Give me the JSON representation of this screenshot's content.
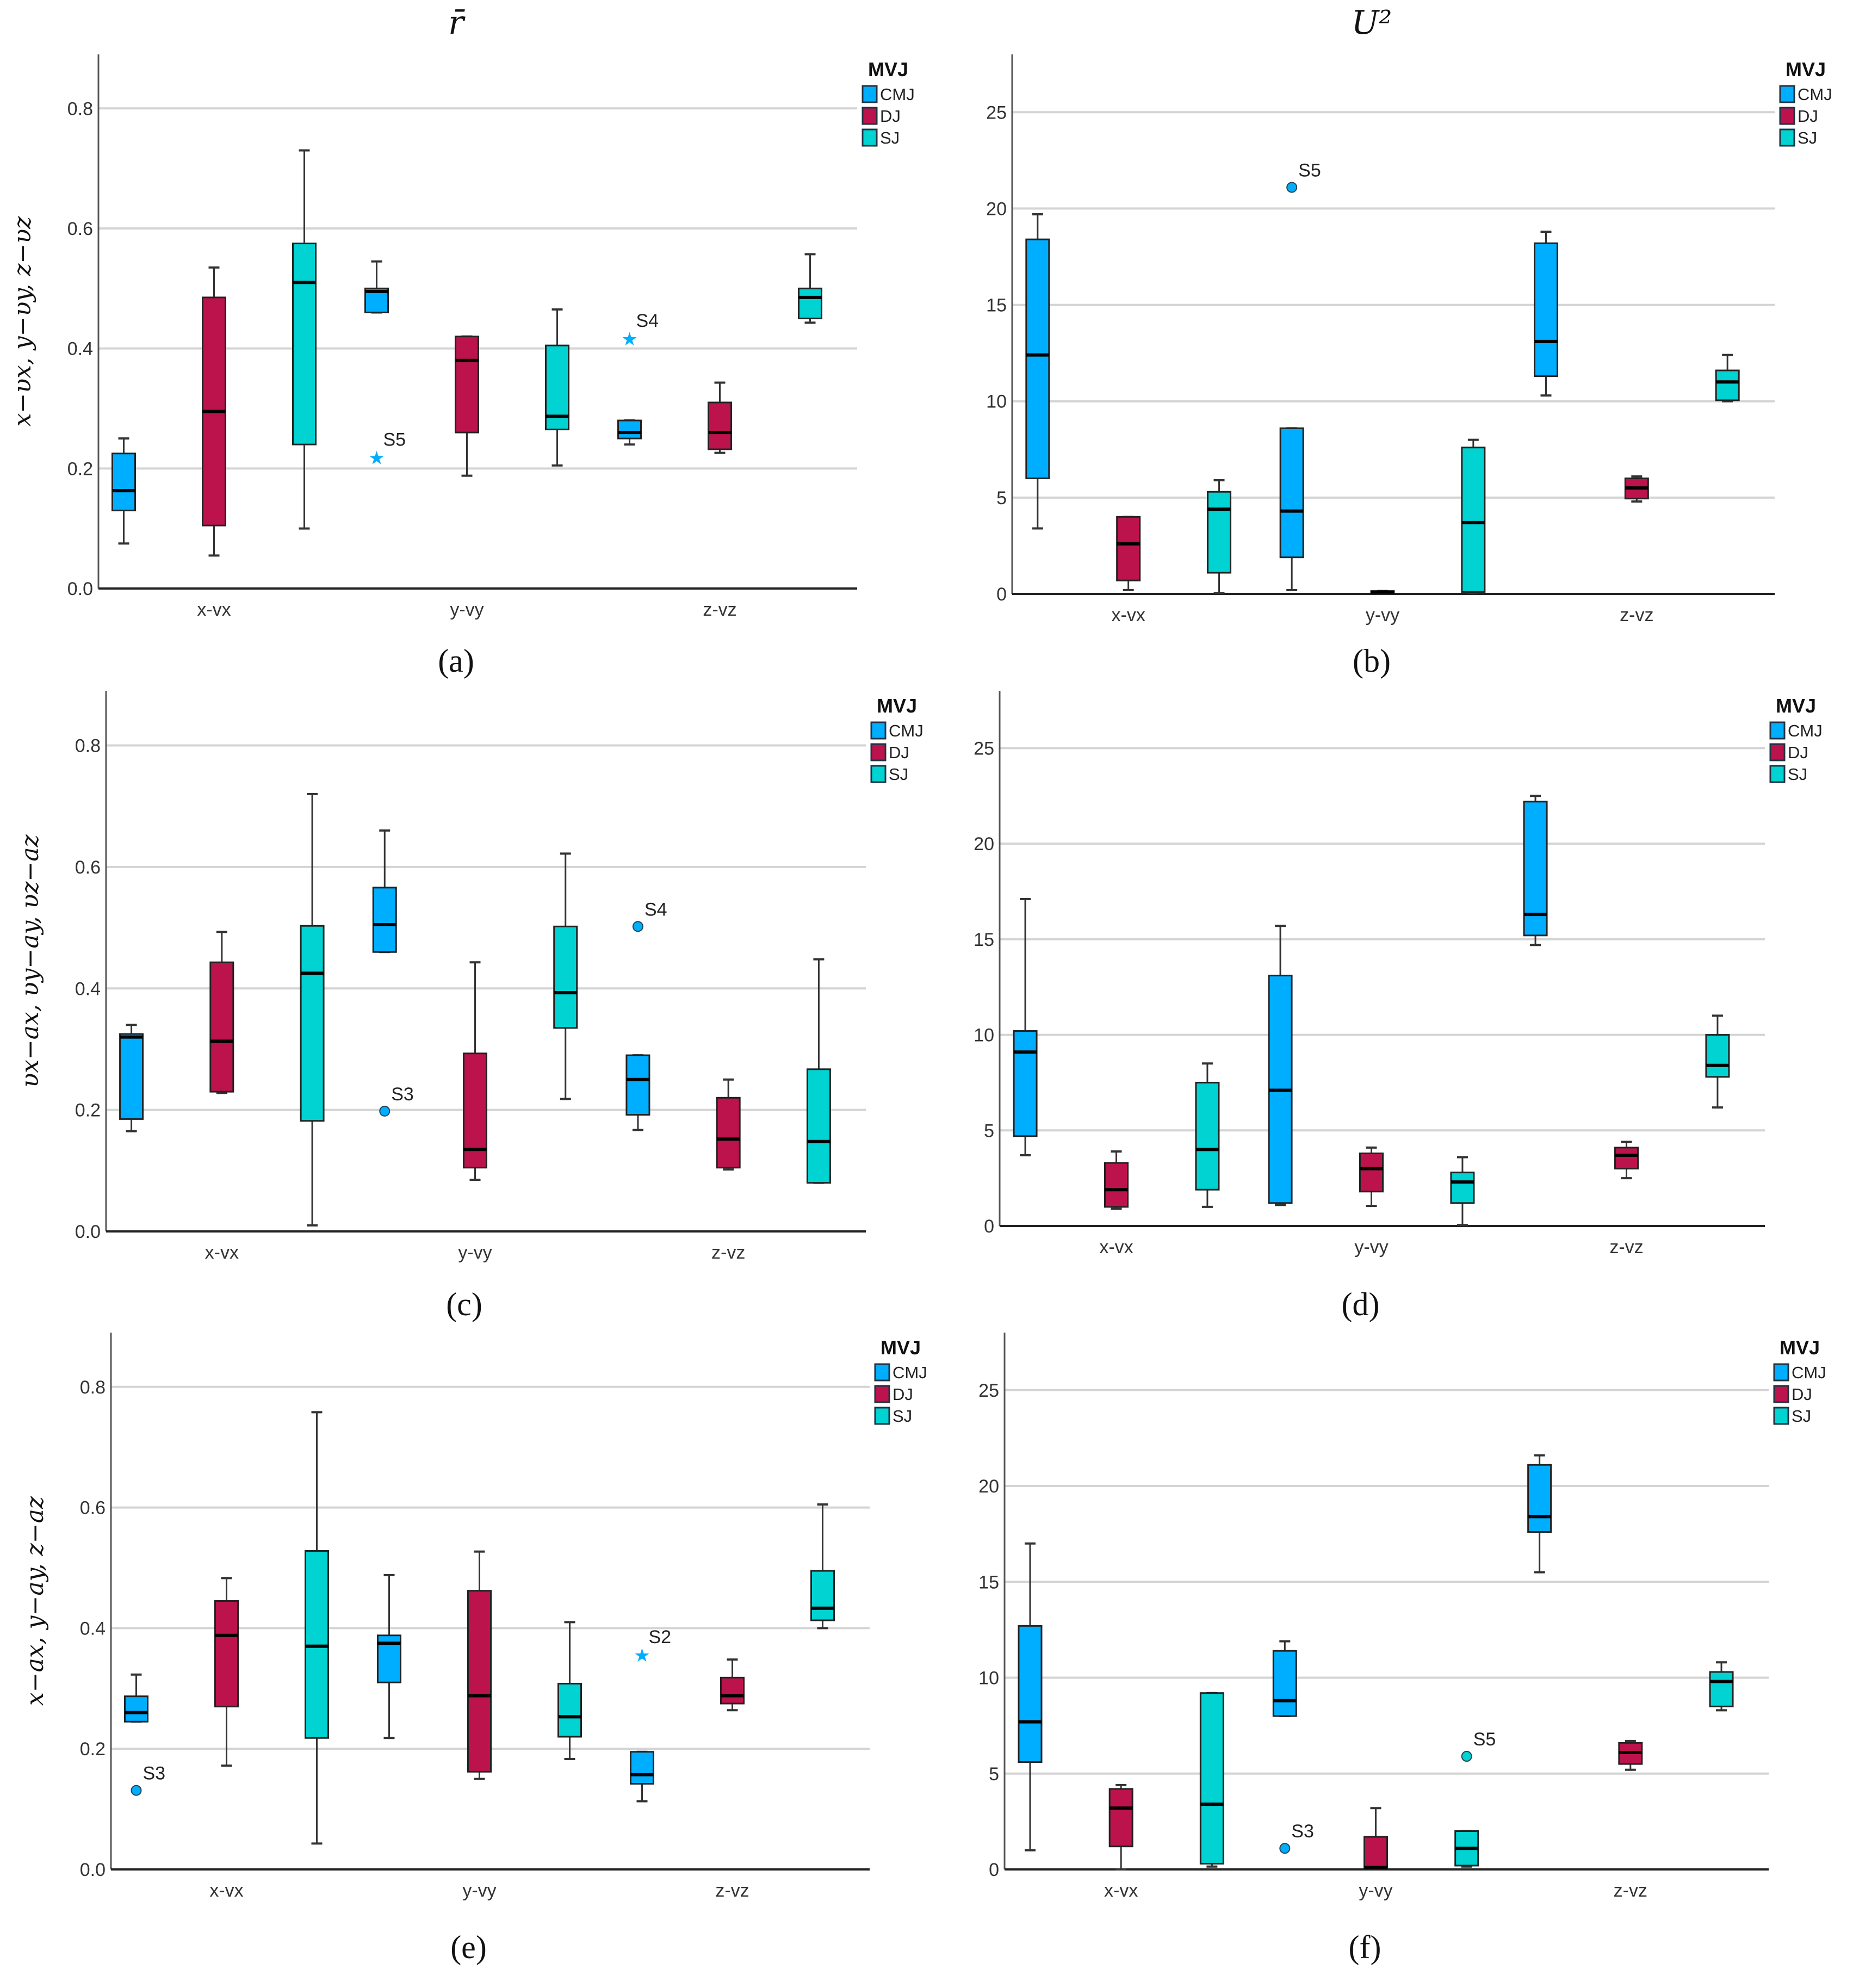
{
  "legend": {
    "title": "MVJ",
    "series": [
      "CMJ",
      "DJ",
      "SJ"
    ]
  },
  "colors": {
    "CMJ": "#00AEFF",
    "DJ": "#BC134C",
    "SJ": "#00D3D1",
    "grid": "#D4D4D4",
    "axis": "#222222"
  },
  "chart_data": [
    {
      "type": "box",
      "panel_label": "(a)",
      "title": "r̄",
      "ylabel": "x−υx, y−υy, z−υz",
      "categories": [
        "x-vx",
        "y-vy",
        "z-vz"
      ],
      "ylim": [
        0,
        0.89
      ],
      "yticks": [
        0,
        0.2,
        0.4,
        0.6,
        0.8
      ],
      "ytick_labels": [
        "0.0",
        "0.2",
        "0.4",
        "0.6",
        "0.8"
      ],
      "series": [
        {
          "name": "CMJ",
          "boxes": [
            [
              0.075,
              0.13,
              0.163,
              0.225,
              0.25
            ],
            [
              0.46,
              0.46,
              0.495,
              0.5,
              0.545
            ],
            [
              0.24,
              0.25,
              0.26,
              0.28,
              0.28
            ]
          ]
        },
        {
          "name": "DJ",
          "boxes": [
            [
              0.055,
              0.105,
              0.295,
              0.485,
              0.535
            ],
            [
              0.188,
              0.26,
              0.38,
              0.42,
              0.42
            ],
            [
              0.226,
              0.232,
              0.26,
              0.31,
              0.343
            ]
          ]
        },
        {
          "name": "SJ",
          "boxes": [
            [
              0.1,
              0.24,
              0.51,
              0.575,
              0.73
            ],
            [
              0.205,
              0.265,
              0.287,
              0.405,
              0.465
            ],
            [
              0.443,
              0.45,
              0.485,
              0.5,
              0.557
            ]
          ]
        }
      ],
      "outliers": [
        {
          "series": "CMJ",
          "category": "y-vy",
          "value": 0.22,
          "label": "S5",
          "marker": "star"
        },
        {
          "series": "CMJ",
          "category": "z-vz",
          "value": 0.418,
          "label": "S4",
          "marker": "star"
        }
      ]
    },
    {
      "type": "box",
      "panel_label": "(b)",
      "title": "U²",
      "ylabel": "",
      "categories": [
        "x-vx",
        "y-vy",
        "z-vz"
      ],
      "ylim": [
        0,
        28
      ],
      "yticks": [
        0,
        5,
        10,
        15,
        20,
        25
      ],
      "ytick_labels": [
        "0",
        "5",
        "10",
        "15",
        "20",
        "25"
      ],
      "series": [
        {
          "name": "CMJ",
          "boxes": [
            [
              3.4,
              6.0,
              12.4,
              18.4,
              19.7
            ],
            [
              0.2,
              1.9,
              4.3,
              8.6,
              8.6
            ],
            [
              10.3,
              11.3,
              13.1,
              18.2,
              18.8
            ]
          ]
        },
        {
          "name": "DJ",
          "boxes": [
            [
              0.2,
              0.7,
              2.6,
              4.0,
              4.0
            ],
            [
              0.05,
              0.05,
              0.1,
              0.15,
              0.15
            ],
            [
              4.8,
              4.95,
              5.5,
              6.0,
              6.1
            ]
          ]
        },
        {
          "name": "SJ",
          "boxes": [
            [
              0.05,
              1.1,
              4.4,
              5.3,
              5.9
            ],
            [
              0.05,
              0.1,
              3.7,
              7.6,
              8.0
            ],
            [
              10.0,
              10.05,
              11.0,
              11.6,
              12.4
            ]
          ]
        }
      ],
      "outliers": [
        {
          "series": "CMJ",
          "category": "y-vy",
          "value": 21.1,
          "label": "S5",
          "marker": "circle"
        }
      ]
    },
    {
      "type": "box",
      "panel_label": "(c)",
      "title": "",
      "ylabel": "υx−ax, υy−ay, υz−az",
      "categories": [
        "x-vx",
        "y-vy",
        "z-vz"
      ],
      "ylim": [
        0,
        0.89
      ],
      "yticks": [
        0,
        0.2,
        0.4,
        0.6,
        0.8
      ],
      "ytick_labels": [
        "0.0",
        "0.2",
        "0.4",
        "0.6",
        "0.8"
      ],
      "series": [
        {
          "name": "CMJ",
          "boxes": [
            [
              0.165,
              0.185,
              0.32,
              0.325,
              0.34
            ],
            [
              0.46,
              0.46,
              0.505,
              0.566,
              0.66
            ],
            [
              0.167,
              0.192,
              0.25,
              0.29,
              0.29
            ]
          ]
        },
        {
          "name": "DJ",
          "boxes": [
            [
              0.228,
              0.23,
              0.313,
              0.443,
              0.493
            ],
            [
              0.085,
              0.105,
              0.135,
              0.293,
              0.443
            ],
            [
              0.102,
              0.105,
              0.152,
              0.22,
              0.25
            ]
          ]
        },
        {
          "name": "SJ",
          "boxes": [
            [
              0.01,
              0.182,
              0.425,
              0.503,
              0.72
            ],
            [
              0.218,
              0.335,
              0.393,
              0.502,
              0.622
            ],
            [
              0.08,
              0.08,
              0.148,
              0.267,
              0.448
            ]
          ]
        }
      ],
      "outliers": [
        {
          "series": "CMJ",
          "category": "y-vy",
          "value": 0.198,
          "label": "S3",
          "marker": "circle"
        },
        {
          "series": "CMJ",
          "category": "z-vz",
          "value": 0.502,
          "label": "S4",
          "marker": "circle"
        }
      ]
    },
    {
      "type": "box",
      "panel_label": "(d)",
      "title": "",
      "ylabel": "",
      "categories": [
        "x-vx",
        "y-vy",
        "z-vz"
      ],
      "ylim": [
        0,
        28
      ],
      "yticks": [
        0,
        5,
        10,
        15,
        20,
        25
      ],
      "ytick_labels": [
        "0",
        "5",
        "10",
        "15",
        "20",
        "25"
      ],
      "series": [
        {
          "name": "CMJ",
          "boxes": [
            [
              3.7,
              4.7,
              9.1,
              10.2,
              17.1
            ],
            [
              1.1,
              1.2,
              7.1,
              13.1,
              15.7
            ],
            [
              14.7,
              15.2,
              16.3,
              22.2,
              22.5
            ]
          ]
        },
        {
          "name": "DJ",
          "boxes": [
            [
              0.9,
              1.0,
              1.9,
              3.3,
              3.9
            ],
            [
              1.05,
              1.8,
              3.0,
              3.8,
              4.1
            ],
            [
              2.5,
              3.0,
              3.7,
              4.1,
              4.4
            ]
          ]
        },
        {
          "name": "SJ",
          "boxes": [
            [
              1.0,
              1.9,
              4.0,
              7.5,
              8.5
            ],
            [
              0.05,
              1.2,
              2.3,
              2.8,
              3.6
            ],
            [
              6.2,
              7.8,
              8.4,
              10.0,
              11.0
            ]
          ]
        }
      ],
      "outliers": []
    },
    {
      "type": "box",
      "panel_label": "(e)",
      "title": "",
      "ylabel": "x−ax, y−ay, z−az",
      "categories": [
        "x-vx",
        "y-vy",
        "z-vz"
      ],
      "ylim": [
        0,
        0.89
      ],
      "yticks": [
        0,
        0.2,
        0.4,
        0.6,
        0.8
      ],
      "ytick_labels": [
        "0.0",
        "0.2",
        "0.4",
        "0.6",
        "0.8"
      ],
      "series": [
        {
          "name": "CMJ",
          "boxes": [
            [
              0.245,
              0.245,
              0.26,
              0.287,
              0.323
            ],
            [
              0.218,
              0.31,
              0.375,
              0.388,
              0.488
            ],
            [
              0.113,
              0.142,
              0.157,
              0.195,
              0.195
            ]
          ]
        },
        {
          "name": "DJ",
          "boxes": [
            [
              0.172,
              0.27,
              0.388,
              0.445,
              0.483
            ],
            [
              0.15,
              0.162,
              0.288,
              0.462,
              0.527
            ],
            [
              0.264,
              0.275,
              0.288,
              0.318,
              0.348
            ]
          ]
        },
        {
          "name": "SJ",
          "boxes": [
            [
              0.043,
              0.218,
              0.37,
              0.528,
              0.758
            ],
            [
              0.183,
              0.22,
              0.253,
              0.308,
              0.41
            ],
            [
              0.4,
              0.413,
              0.433,
              0.495,
              0.605
            ]
          ]
        }
      ],
      "outliers": [
        {
          "series": "CMJ",
          "category": "x-vx",
          "value": 0.131,
          "label": "S3",
          "marker": "circle"
        },
        {
          "series": "CMJ",
          "category": "z-vz",
          "value": 0.357,
          "label": "S2",
          "marker": "star"
        }
      ]
    },
    {
      "type": "box",
      "panel_label": "(f)",
      "title": "",
      "ylabel": "",
      "categories": [
        "x-vx",
        "y-vy",
        "z-vz"
      ],
      "ylim": [
        0,
        28
      ],
      "yticks": [
        0,
        5,
        10,
        15,
        20,
        25
      ],
      "ytick_labels": [
        "0",
        "5",
        "10",
        "15",
        "20",
        "25"
      ],
      "series": [
        {
          "name": "CMJ",
          "boxes": [
            [
              1.0,
              5.6,
              7.7,
              12.7,
              17.0
            ],
            [
              8.0,
              8.0,
              8.8,
              11.4,
              11.9
            ],
            [
              15.5,
              17.6,
              18.4,
              21.1,
              21.6
            ]
          ]
        },
        {
          "name": "DJ",
          "boxes": [
            [
              0.0,
              1.2,
              3.2,
              4.2,
              4.4
            ],
            [
              0.05,
              0.05,
              0.1,
              1.7,
              3.2
            ],
            [
              5.2,
              5.5,
              6.1,
              6.6,
              6.7
            ]
          ]
        },
        {
          "name": "SJ",
          "boxes": [
            [
              0.15,
              0.3,
              3.4,
              9.2,
              9.2
            ],
            [
              0.15,
              0.2,
              1.1,
              2.0,
              2.0
            ],
            [
              8.3,
              8.5,
              9.8,
              10.3,
              10.8
            ]
          ]
        }
      ],
      "outliers": [
        {
          "series": "CMJ",
          "category": "y-vy",
          "value": 1.1,
          "label": "S3",
          "marker": "circle"
        },
        {
          "series": "SJ",
          "category": "y-vy",
          "value": 5.9,
          "label": "S5",
          "marker": "circle"
        }
      ]
    }
  ]
}
